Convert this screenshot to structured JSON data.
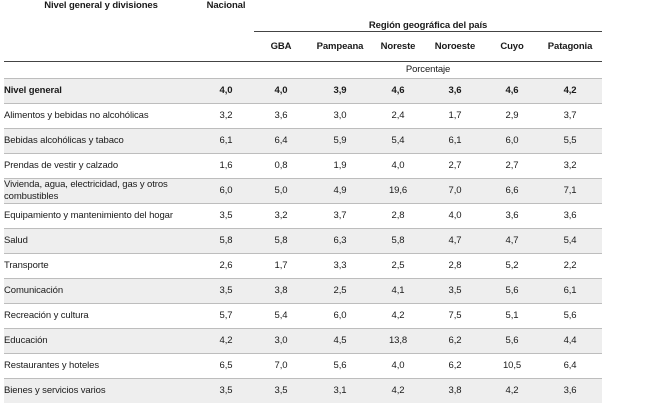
{
  "header": {
    "row_label": "Nivel general y divisiones",
    "national": "Nacional",
    "region_group": "Región geográfica del país",
    "regions": [
      "GBA",
      "Pampeana",
      "Noreste",
      "Noroeste",
      "Cuyo",
      "Patagonia"
    ],
    "unit": "Porcentaje"
  },
  "rows": [
    {
      "label": "Nivel general",
      "values": [
        "4,0",
        "4,0",
        "3,9",
        "4,6",
        "3,6",
        "4,6",
        "4,2"
      ],
      "bold": true
    },
    {
      "label": "Alimentos y bebidas no alcohólicas",
      "values": [
        "3,2",
        "3,6",
        "3,0",
        "2,4",
        "1,7",
        "2,9",
        "3,7"
      ]
    },
    {
      "label": "Bebidas alcohólicas y tabaco",
      "values": [
        "6,1",
        "6,4",
        "5,9",
        "5,4",
        "6,1",
        "6,0",
        "5,5"
      ]
    },
    {
      "label": "Prendas de vestir y calzado",
      "values": [
        "1,6",
        "0,8",
        "1,9",
        "4,0",
        "2,7",
        "2,7",
        "3,2"
      ]
    },
    {
      "label": "Vivienda, agua, electricidad, gas y otros combustibles",
      "values": [
        "6,0",
        "5,0",
        "4,9",
        "19,6",
        "7,0",
        "6,6",
        "7,1"
      ]
    },
    {
      "label": "Equipamiento y mantenimiento del hogar",
      "values": [
        "3,5",
        "3,2",
        "3,7",
        "2,8",
        "4,0",
        "3,6",
        "3,6"
      ]
    },
    {
      "label": "Salud",
      "values": [
        "5,8",
        "5,8",
        "6,3",
        "5,8",
        "4,7",
        "4,7",
        "5,4"
      ]
    },
    {
      "label": "Transporte",
      "values": [
        "2,6",
        "1,7",
        "3,3",
        "2,5",
        "2,8",
        "5,2",
        "2,2"
      ]
    },
    {
      "label": "Comunicación",
      "values": [
        "3,5",
        "3,8",
        "2,5",
        "4,1",
        "3,5",
        "5,6",
        "6,1"
      ]
    },
    {
      "label": "Recreación y cultura",
      "values": [
        "5,7",
        "5,4",
        "6,0",
        "4,2",
        "7,5",
        "5,1",
        "5,6"
      ]
    },
    {
      "label": "Educación",
      "values": [
        "4,2",
        "3,0",
        "4,5",
        "13,8",
        "6,2",
        "5,6",
        "4,4"
      ]
    },
    {
      "label": "Restaurantes y hoteles",
      "values": [
        "6,5",
        "7,0",
        "5,6",
        "4,0",
        "6,2",
        "10,5",
        "6,4"
      ]
    },
    {
      "label": "Bienes y servicios varios",
      "values": [
        "3,5",
        "3,5",
        "3,1",
        "4,2",
        "3,8",
        "4,2",
        "3,6"
      ]
    }
  ]
}
